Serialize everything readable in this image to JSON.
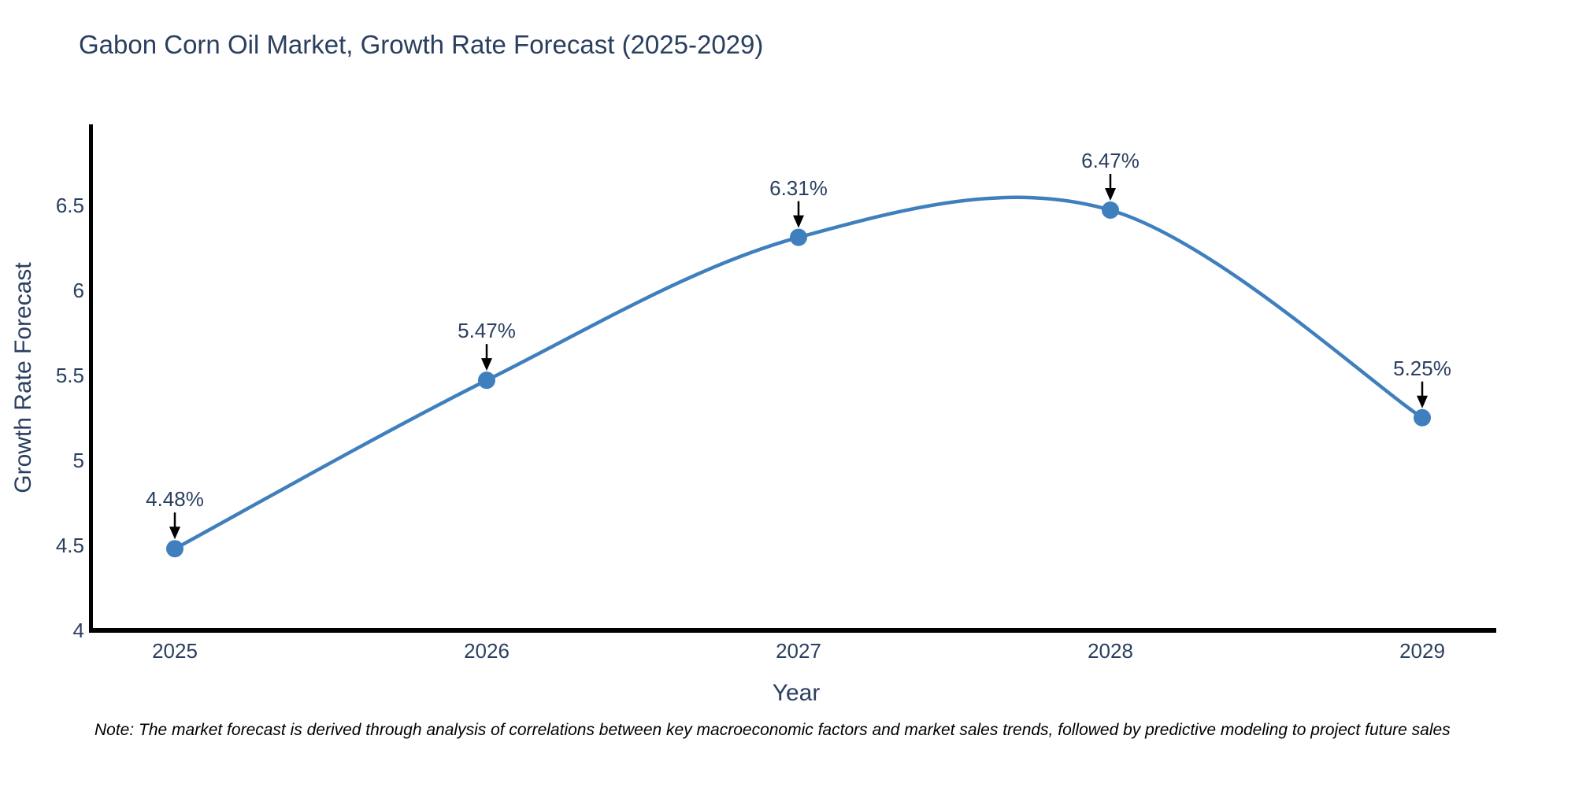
{
  "chart_data": {
    "type": "line",
    "line_shape": "spline",
    "title": "Gabon Corn Oil Market, Growth Rate Forecast (2025-2029)",
    "xlabel": "Year",
    "ylabel": "Growth Rate Forecast",
    "x": [
      2025,
      2026,
      2027,
      2028,
      2029
    ],
    "values": [
      4.48,
      5.47,
      6.31,
      6.47,
      5.25
    ],
    "point_labels": [
      "4.48%",
      "5.47%",
      "6.31%",
      "6.47%",
      "5.25%"
    ],
    "x_ticks": [
      "2025",
      "2026",
      "2027",
      "2028",
      "2029"
    ],
    "y_ticks": [
      "4",
      "4.5",
      "5",
      "5.5",
      "6",
      "6.5"
    ],
    "y_tick_values": [
      4,
      4.5,
      5,
      5.5,
      6,
      6.5
    ],
    "ylim": [
      4,
      6.96
    ],
    "grid": false,
    "legend": "none",
    "footnote": "Note: The market forecast is derived through analysis of correlations between key macroeconomic factors and market sales trends, followed by predictive modeling to project future sales",
    "colors": {
      "line": "#3f7fbd",
      "marker": "#3f7fbd",
      "text": "#2a3f5f",
      "axis": "#000000",
      "arrow": "#000000",
      "footnote_text": "#000000",
      "background": "#ffffff"
    }
  }
}
